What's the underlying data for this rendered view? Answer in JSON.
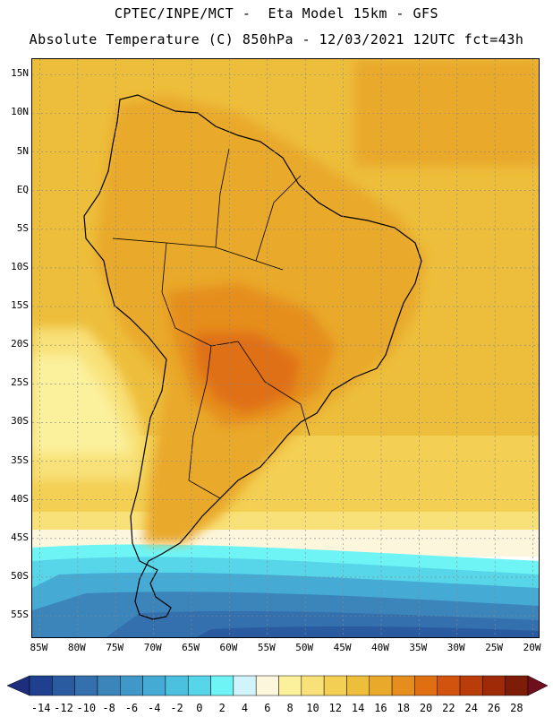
{
  "header": {
    "line1": "CPTEC/INPE/MCT -  Eta Model 15km - GFS",
    "line2": "Absolute Temperature (C) 850hPa - 12/03/2021 12UTC fct=43h"
  },
  "map": {
    "lat_labels": [
      "15N",
      "10N",
      "5N",
      "EQ",
      "5S",
      "10S",
      "15S",
      "20S",
      "25S",
      "30S",
      "35S",
      "40S",
      "45S",
      "50S",
      "55S"
    ],
    "lat_values": [
      15,
      10,
      5,
      0,
      -5,
      -10,
      -15,
      -20,
      -25,
      -30,
      -35,
      -40,
      -45,
      -50,
      -55
    ],
    "lon_labels": [
      "85W",
      "80W",
      "75W",
      "70W",
      "65W",
      "60W",
      "55W",
      "50W",
      "45W",
      "40W",
      "35W",
      "30W",
      "25W",
      "20W"
    ],
    "lon_values": [
      -85,
      -80,
      -75,
      -70,
      -65,
      -60,
      -55,
      -50,
      -45,
      -40,
      -35,
      -30,
      -25,
      -20
    ],
    "lat_range": [
      -58,
      17
    ],
    "lon_range": [
      -86,
      -19
    ],
    "field_summary": "850hPa temperature: 16-20C over tropics, 20-24C hot spot over Paraguay/Bolivia/SW Brazil, cooling to 6-8C near 45S and below 0C (down to -10C) south of 50S"
  },
  "colorbar": {
    "labels": [
      "-14",
      "-12",
      "-10",
      "-8",
      "-6",
      "-4",
      "-2",
      "0",
      "2",
      "4",
      "6",
      "8",
      "10",
      "12",
      "14",
      "16",
      "18",
      "20",
      "22",
      "24",
      "26",
      "28"
    ],
    "colors": [
      "#1f3f8f",
      "#2a5aa0",
      "#3470ae",
      "#3c85bb",
      "#3f98c8",
      "#45aad4",
      "#4cc0df",
      "#57d6ea",
      "#6ff4f6",
      "#d1f3fb",
      "#fcf6dc",
      "#fbf09c",
      "#f8e178",
      "#f3cf53",
      "#edbe3b",
      "#e9a92b",
      "#e58e1e",
      "#e06f12",
      "#d2530d",
      "#ba3c0a",
      "#9e2a08",
      "#7d1c07"
    ],
    "low_extension_color": "#1d2e7c",
    "high_extension_color": "#6e0f1e"
  },
  "colors": {
    "ocean_tropics": "#edbe3b",
    "land_warm": "#e9a92b",
    "land_hot": "#e06f12",
    "coastline": "#000000"
  }
}
